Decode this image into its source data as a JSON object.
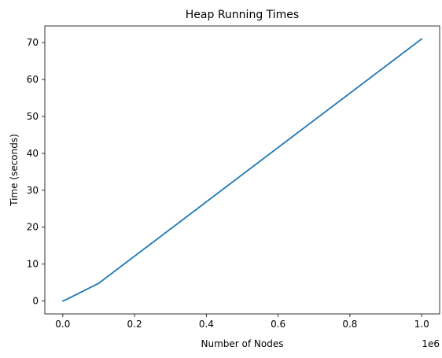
{
  "chart_data": {
    "type": "line",
    "title": "Heap Running Times",
    "xlabel": "Number of Nodes",
    "ylabel": "Time (seconds)",
    "x_offset_label": "1e6",
    "xlim": [
      -50000,
      1050000
    ],
    "ylim": [
      -3.5,
      74.5
    ],
    "x_ticks": [
      {
        "value": 0,
        "label": "0.0"
      },
      {
        "value": 200000,
        "label": "0.2"
      },
      {
        "value": 400000,
        "label": "0.4"
      },
      {
        "value": 600000,
        "label": "0.6"
      },
      {
        "value": 800000,
        "label": "0.8"
      },
      {
        "value": 1000000,
        "label": "1.0"
      }
    ],
    "y_ticks": [
      {
        "value": 0,
        "label": "0"
      },
      {
        "value": 10,
        "label": "10"
      },
      {
        "value": 20,
        "label": "20"
      },
      {
        "value": 30,
        "label": "30"
      },
      {
        "value": 40,
        "label": "40"
      },
      {
        "value": 50,
        "label": "50"
      },
      {
        "value": 60,
        "label": "60"
      },
      {
        "value": 70,
        "label": "70"
      }
    ],
    "grid": false,
    "series": [
      {
        "color": "#1f77b4",
        "x": [
          0,
          10000,
          100000,
          1000000
        ],
        "y": [
          0,
          0.4,
          4.8,
          71.0
        ]
      }
    ]
  }
}
